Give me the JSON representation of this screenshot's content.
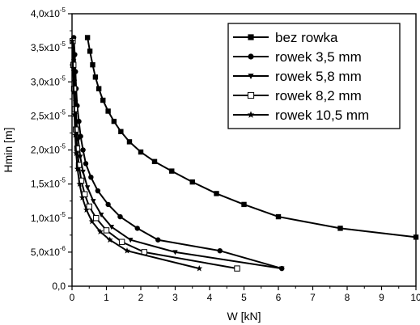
{
  "chart_data": {
    "type": "line",
    "xlabel": "W [kN]",
    "ylabel": "Hmin [m]",
    "xlim": [
      0,
      10
    ],
    "ylim": [
      0,
      4e-05
    ],
    "x_ticks": [
      "0",
      "1",
      "2",
      "3",
      "4",
      "5",
      "6",
      "7",
      "8",
      "9",
      "10"
    ],
    "y_ticks": [
      {
        "m": "0,0",
        "e": ""
      },
      {
        "m": "5,0x10",
        "e": "-6"
      },
      {
        "m": "1,0x10",
        "e": "-5"
      },
      {
        "m": "1,5x10",
        "e": "-5"
      },
      {
        "m": "2,0x10",
        "e": "-5"
      },
      {
        "m": "2,5x10",
        "e": "-5"
      },
      {
        "m": "3,0x10",
        "e": "-5"
      },
      {
        "m": "3,5x10",
        "e": "-5"
      },
      {
        "m": "4,0x10",
        "e": "-5"
      }
    ],
    "legend_position": "top-right",
    "series": [
      {
        "name": "bez rowka",
        "marker": "square",
        "points": [
          [
            0.45,
            3.65e-05
          ],
          [
            0.52,
            3.45e-05
          ],
          [
            0.6,
            3.25e-05
          ],
          [
            0.68,
            3.07e-05
          ],
          [
            0.78,
            2.9e-05
          ],
          [
            0.9,
            2.73e-05
          ],
          [
            1.05,
            2.57e-05
          ],
          [
            1.22,
            2.42e-05
          ],
          [
            1.42,
            2.27e-05
          ],
          [
            1.67,
            2.12e-05
          ],
          [
            2.0,
            1.97e-05
          ],
          [
            2.4,
            1.83e-05
          ],
          [
            2.9,
            1.69e-05
          ],
          [
            3.5,
            1.53e-05
          ],
          [
            4.2,
            1.36e-05
          ],
          [
            5.0,
            1.2e-05
          ],
          [
            6.0,
            1.02e-05
          ],
          [
            7.8,
            8.5e-06
          ],
          [
            10.0,
            7.2e-06
          ]
        ]
      },
      {
        "name": "rowek 3,5 mm",
        "marker": "circle",
        "points": [
          [
            0.05,
            3.65e-05
          ],
          [
            0.08,
            3.4e-05
          ],
          [
            0.1,
            3.15e-05
          ],
          [
            0.12,
            2.9e-05
          ],
          [
            0.15,
            2.65e-05
          ],
          [
            0.2,
            2.42e-05
          ],
          [
            0.25,
            2.2e-05
          ],
          [
            0.32,
            2e-05
          ],
          [
            0.4,
            1.8e-05
          ],
          [
            0.55,
            1.6e-05
          ],
          [
            0.75,
            1.4e-05
          ],
          [
            1.05,
            1.2e-05
          ],
          [
            1.4,
            1.02e-05
          ],
          [
            1.9,
            8.5e-06
          ],
          [
            2.5,
            6.8e-06
          ],
          [
            4.3,
            5.2e-06
          ],
          [
            6.1,
            2.6e-06
          ]
        ]
      },
      {
        "name": "rowek 5,8 mm",
        "marker": "triangle-down",
        "points": [
          [
            0.03,
            3.6e-05
          ],
          [
            0.05,
            3.3e-05
          ],
          [
            0.07,
            3e-05
          ],
          [
            0.1,
            2.7e-05
          ],
          [
            0.13,
            2.42e-05
          ],
          [
            0.18,
            2.15e-05
          ],
          [
            0.24,
            1.9e-05
          ],
          [
            0.32,
            1.68e-05
          ],
          [
            0.45,
            1.45e-05
          ],
          [
            0.62,
            1.25e-05
          ],
          [
            0.85,
            1.05e-05
          ],
          [
            1.15,
            8.7e-06
          ],
          [
            1.7,
            6.8e-06
          ],
          [
            3.0,
            5e-06
          ],
          [
            6.1,
            2.6e-06
          ]
        ]
      },
      {
        "name": "rowek 8,2 mm",
        "marker": "square-open",
        "points": [
          [
            0.02,
            3.6e-05
          ],
          [
            0.04,
            3.25e-05
          ],
          [
            0.06,
            2.9e-05
          ],
          [
            0.08,
            2.6e-05
          ],
          [
            0.11,
            2.3e-05
          ],
          [
            0.15,
            2.02e-05
          ],
          [
            0.2,
            1.78e-05
          ],
          [
            0.27,
            1.55e-05
          ],
          [
            0.37,
            1.35e-05
          ],
          [
            0.5,
            1.17e-05
          ],
          [
            0.7,
            1e-05
          ],
          [
            1.0,
            8.2e-06
          ],
          [
            1.45,
            6.5e-06
          ],
          [
            2.1,
            5e-06
          ],
          [
            4.8,
            2.6e-06
          ]
        ]
      },
      {
        "name": "rowek 10,5 mm",
        "marker": "star",
        "points": [
          [
            0.01,
            3.6e-05
          ],
          [
            0.03,
            3.2e-05
          ],
          [
            0.05,
            2.85e-05
          ],
          [
            0.07,
            2.52e-05
          ],
          [
            0.09,
            2.22e-05
          ],
          [
            0.12,
            1.95e-05
          ],
          [
            0.16,
            1.72e-05
          ],
          [
            0.22,
            1.5e-05
          ],
          [
            0.3,
            1.3e-05
          ],
          [
            0.42,
            1.12e-05
          ],
          [
            0.58,
            9.5e-06
          ],
          [
            0.82,
            8e-06
          ],
          [
            1.1,
            6.8e-06
          ],
          [
            1.6,
            5.2e-06
          ],
          [
            3.7,
            2.6e-06
          ]
        ]
      }
    ]
  }
}
